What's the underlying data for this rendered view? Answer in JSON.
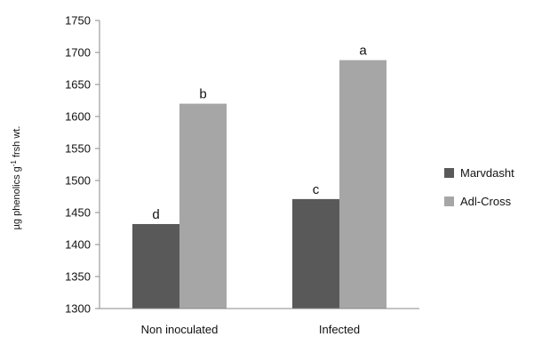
{
  "chart_data": {
    "type": "bar",
    "title": "",
    "xlabel": "",
    "ylabel": {
      "main": "µg phenolics g",
      "superscript": "-1",
      "tail": " frsh wt."
    },
    "ylim": [
      1300,
      1750
    ],
    "yticks": [
      1300,
      1350,
      1400,
      1450,
      1500,
      1550,
      1600,
      1650,
      1700,
      1750
    ],
    "grid": false,
    "legend_position": "right",
    "categories": [
      "Non inoculated",
      "Infected"
    ],
    "series": [
      {
        "name": "Marvdasht",
        "color": "#595959",
        "values": [
          1432,
          1471
        ],
        "labels": [
          "d",
          "c"
        ]
      },
      {
        "name": "Adl-Cross",
        "color": "#a6a6a6",
        "values": [
          1620,
          1688
        ],
        "labels": [
          "b",
          "a"
        ]
      }
    ]
  }
}
